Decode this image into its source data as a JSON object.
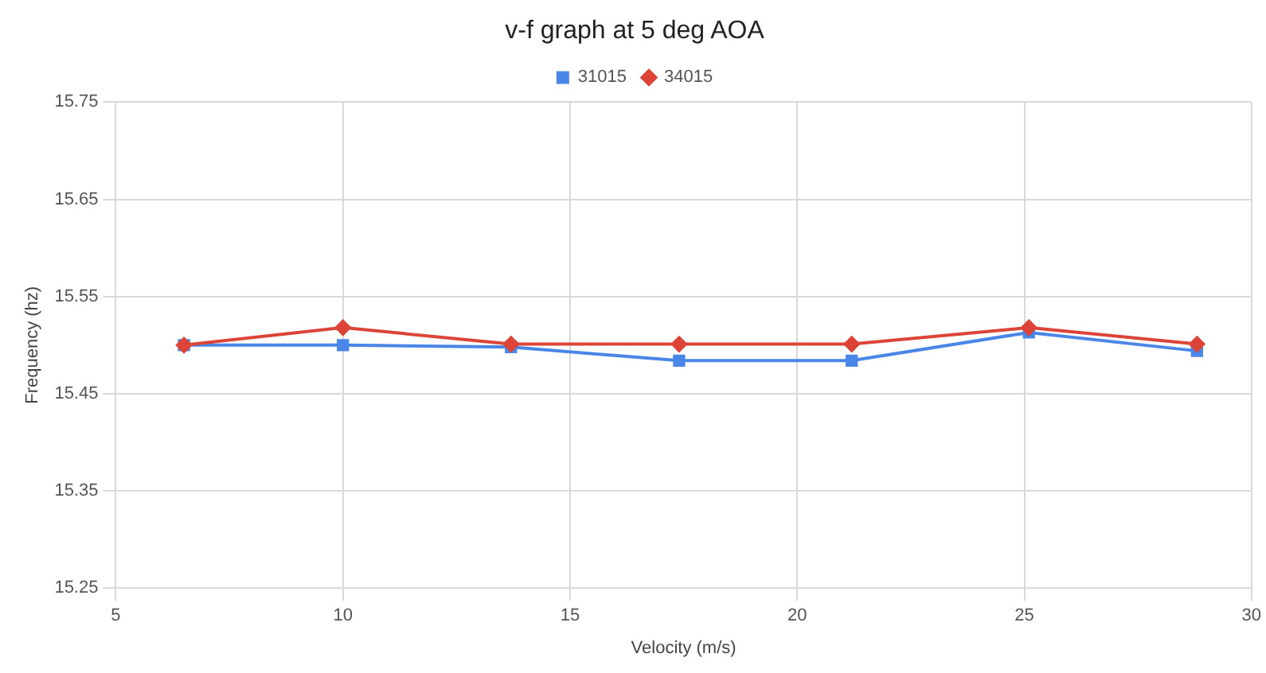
{
  "chart_data": {
    "type": "line",
    "title": "v-f graph at 5 deg AOA",
    "xlabel": "Velocity (m/s)",
    "ylabel": "Frequency (hz)",
    "x": [
      6.5,
      10,
      13.7,
      17.4,
      21.2,
      25.1,
      28.8
    ],
    "series": [
      {
        "name": "31015",
        "color": "#4a86e8",
        "marker": "square",
        "values": [
          15.5,
          15.5,
          15.498,
          15.484,
          15.484,
          15.513,
          15.494
        ]
      },
      {
        "name": "34015",
        "color": "#db4437",
        "marker": "diamond",
        "values": [
          15.5,
          15.518,
          15.501,
          15.501,
          15.501,
          15.518,
          15.501
        ]
      }
    ],
    "xlim": [
      5,
      30
    ],
    "xticks": [
      5,
      10,
      15,
      20,
      25,
      30
    ],
    "ylim": [
      15.25,
      15.75
    ],
    "yticks": [
      15.25,
      15.35,
      15.45,
      15.55,
      15.65,
      15.75
    ],
    "grid": true,
    "legend": "top"
  }
}
